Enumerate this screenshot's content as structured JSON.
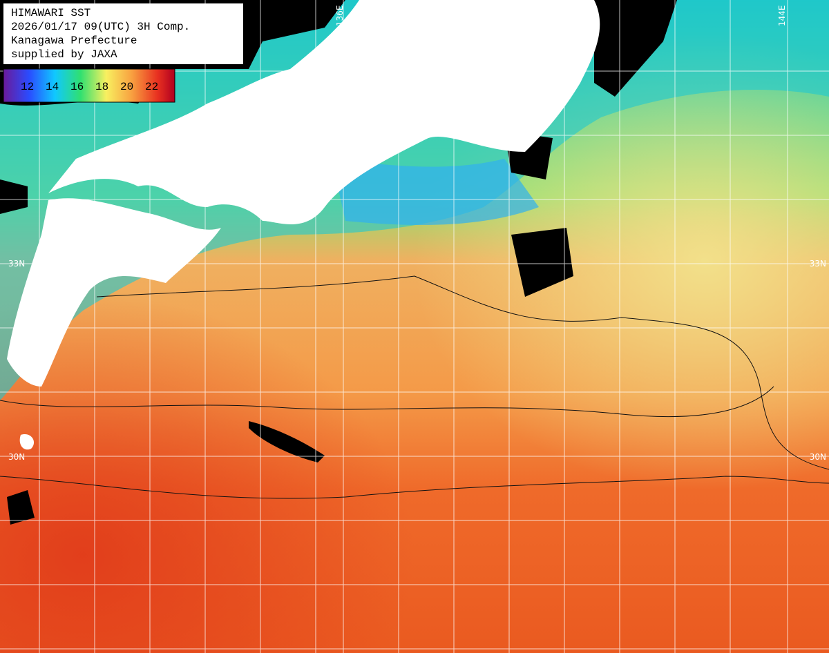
{
  "header": {
    "lines": [
      "HIMAWARI SST",
      "2026/01/17 09(UTC) 3H Comp.",
      "Kanagawa Prefecture",
      "supplied by JAXA"
    ]
  },
  "colorbar": {
    "labels": [
      "12",
      "14",
      "16",
      "18",
      "20",
      "22"
    ]
  },
  "grid_labels": {
    "lon": [
      "136E",
      "144E"
    ],
    "lat_left": [
      "33N",
      "30N"
    ],
    "lat_right": [
      "33N",
      "30N"
    ]
  }
}
